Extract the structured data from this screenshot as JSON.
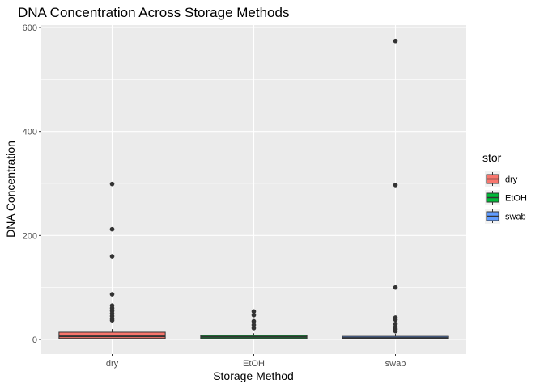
{
  "chart_data": {
    "type": "box",
    "title": "DNA Concentration Across Storage Methods",
    "xlabel": "Storage Method",
    "ylabel": "DNA Concentration",
    "ylim": [
      -15,
      600
    ],
    "yticks": [
      0,
      200,
      400,
      600
    ],
    "categories": [
      "dry",
      "EtOH",
      "swab"
    ],
    "legend": {
      "title": "stor",
      "placement": "right"
    },
    "grid": true,
    "series": [
      {
        "name": "dry",
        "color": "#F8766D",
        "q1": 2,
        "median": 6,
        "q3": 14,
        "whisker_low": 0,
        "whisker_high": 20,
        "outliers": [
          299,
          212,
          160,
          87,
          65,
          60,
          55,
          50,
          45,
          40,
          37
        ]
      },
      {
        "name": "EtOH",
        "color": "#00BA38",
        "q1": 2,
        "median": 5,
        "q3": 8,
        "whisker_low": 0,
        "whisker_high": 12,
        "outliers": [
          54,
          47,
          35,
          28,
          22
        ]
      },
      {
        "name": "swab",
        "color": "#619CFF",
        "q1": 1,
        "median": 3,
        "q3": 6,
        "whisker_low": 0,
        "whisker_high": 11,
        "outliers": [
          574,
          297,
          100,
          42,
          38,
          30,
          24,
          20,
          16
        ]
      }
    ]
  }
}
